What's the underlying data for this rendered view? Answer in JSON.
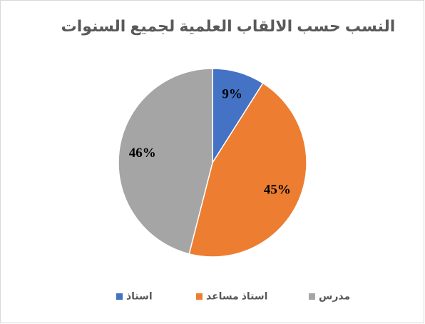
{
  "chart_data": {
    "type": "pie",
    "title": "النسب حسب الالقاب العلمية لجميع السنوات",
    "categories": [
      "استاذ",
      "استاذ مساعد",
      "مدرس"
    ],
    "values": [
      9,
      45,
      46
    ],
    "value_labels": [
      "9%",
      "45%",
      "46%"
    ],
    "colors": [
      "#4472c4",
      "#ed7d31",
      "#a5a5a5"
    ]
  }
}
